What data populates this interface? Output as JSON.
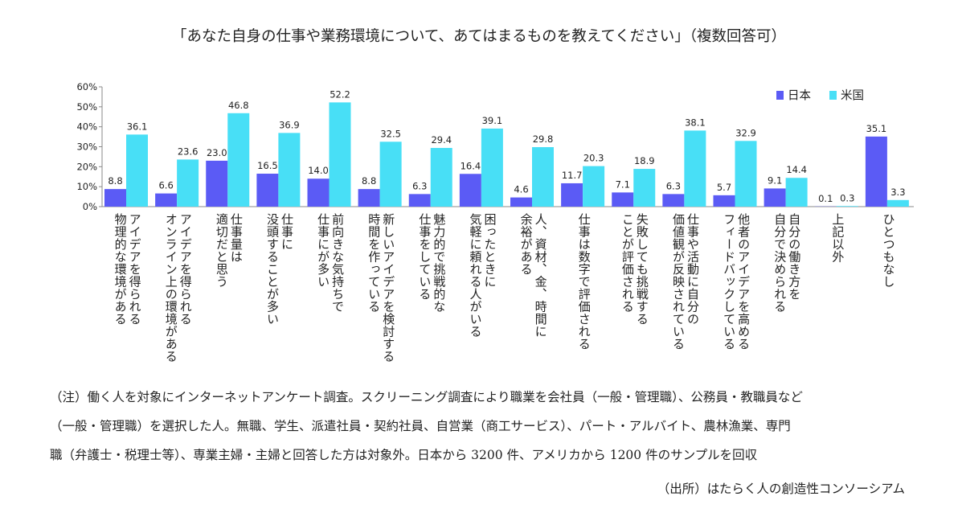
{
  "colors": {
    "japan": "#5b5bf5",
    "usa": "#48dff6",
    "axis": "#888888",
    "text": "#222222"
  },
  "chart_data": {
    "type": "bar",
    "title": "「あなた自身の仕事や業務環境について、あてはまるものを教えてください」（複数回答可）",
    "ylim": [
      0,
      60
    ],
    "yticks": [
      "0%",
      "10%",
      "20%",
      "30%",
      "40%",
      "50%",
      "60%"
    ],
    "yunit": "%",
    "legend_position": "top-right",
    "categories": [
      [
        "アイデアを得られる",
        "物理的な環境がある"
      ],
      [
        "アイデアを得られる",
        "オンライン上の環境がある"
      ],
      [
        "仕事量は",
        "適切だと思う"
      ],
      [
        "仕事に",
        "没頭することが多い"
      ],
      [
        "前向きな気持ちで",
        "仕事にが多い"
      ],
      [
        "新しいアイデアを検討する",
        "時間を作っている"
      ],
      [
        "魅力的で挑戦的な",
        "仕事をしている"
      ],
      [
        "困ったときに",
        "気軽に頼れる人がいる"
      ],
      [
        "人、資材、金、時間に",
        "余裕がある"
      ],
      [
        "仕事は数字で評価される"
      ],
      [
        "失敗しても挑戦する",
        "ことが評価される"
      ],
      [
        "仕事や活動に自分の",
        "価値観が反映されている"
      ],
      [
        "他者のアイデアを高める",
        "フィードバックしている"
      ],
      [
        "自分の働き方を",
        "自分で決められる"
      ],
      [
        "上記以外"
      ],
      [
        "ひとつもなし"
      ]
    ],
    "series": [
      {
        "name": "日本",
        "values": [
          8.8,
          6.6,
          23.0,
          16.5,
          14.0,
          8.8,
          6.3,
          16.4,
          4.6,
          11.7,
          7.1,
          6.3,
          5.7,
          9.1,
          0.1,
          35.1
        ],
        "labels": [
          "8.8",
          "6.6",
          "23.0",
          "16.5",
          "14.0",
          "8.8",
          "6.3",
          "16.4",
          "4.6",
          "11.7",
          "7.1",
          "6.3",
          "5.7",
          "9.1",
          "0.1",
          "35.1"
        ]
      },
      {
        "name": "米国",
        "values": [
          36.1,
          23.6,
          46.8,
          36.9,
          52.2,
          32.5,
          29.4,
          39.1,
          29.8,
          20.3,
          18.9,
          38.1,
          32.9,
          14.4,
          0.3,
          3.3
        ],
        "labels": [
          "36.1",
          "23.6",
          "46.8",
          "36.9",
          "52.2",
          "32.5",
          "29.4",
          "39.1",
          "29.8",
          "20.3",
          "18.9",
          "38.1",
          "32.9",
          "14.4",
          "0.3",
          "3.3"
        ]
      }
    ]
  },
  "notes": {
    "line1": "（注）働く人を対象にインターネットアンケート調査。スクリーニング調査により職業を会社員（一般・管理職）、公務員・教職員など",
    "line2": "（一般・管理職）を選択した人。無職、学生、派遣社員・契約社員、自営業（商工サービス）、パート・アルバイト、農林漁業、専門",
    "line3": "職（弁護士・税理士等）、専業主婦・主婦と回答した方は対象外。日本から 3200 件、アメリカから 1200 件のサンプルを回収",
    "source": "（出所）はたらく人の創造性コンソーシアム"
  }
}
